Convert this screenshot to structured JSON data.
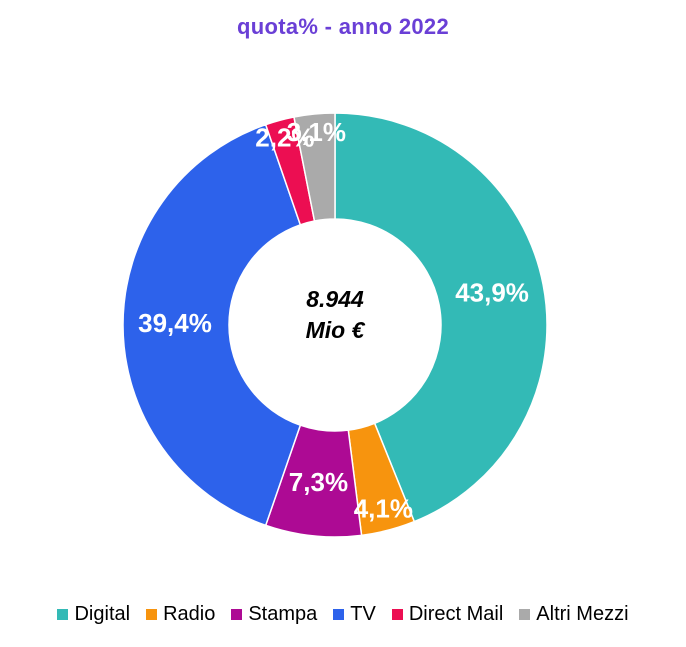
{
  "chart_data": {
    "type": "pie",
    "title": "quota% - anno 2022",
    "title_color": "#6a3fd6",
    "center_label": {
      "line1": "8.944",
      "line2": "Mio €"
    },
    "legend_position": "bottom",
    "slices": [
      {
        "name": "Digital",
        "value": 43.9,
        "label": "43,9%",
        "color": "#33bab6"
      },
      {
        "name": "Radio",
        "value": 4.1,
        "label": "4,1%",
        "color": "#f7940e"
      },
      {
        "name": "Stampa",
        "value": 7.3,
        "label": "7,3%",
        "color": "#ad0a94"
      },
      {
        "name": "TV",
        "value": 39.4,
        "label": "39,4%",
        "color": "#2d62eb"
      },
      {
        "name": "Direct Mail",
        "value": 2.2,
        "label": "2,2%",
        "color": "#ec0e52"
      },
      {
        "name": "Altri Mezzi",
        "value": 3.1,
        "label": "3,1%",
        "color": "#aaaaaa"
      }
    ]
  }
}
